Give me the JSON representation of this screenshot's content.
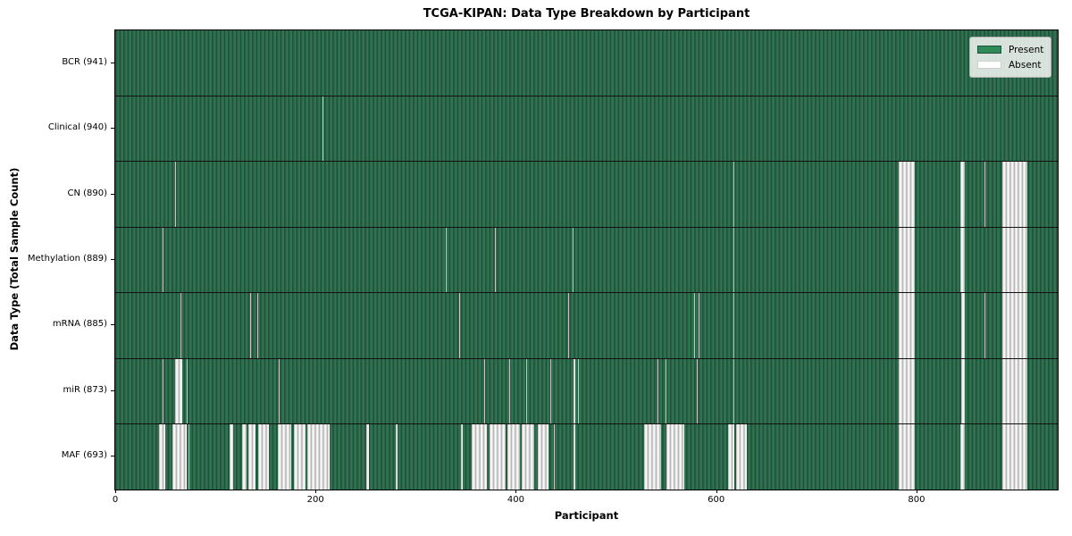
{
  "title": "TCGA-KIPAN: Data Type Breakdown by Participant",
  "axes": {
    "x_label": "Participant",
    "y_label": "Data Type (Total Sample Count)"
  },
  "legend": {
    "items": [
      {
        "label": "Present",
        "color": "#2e8b57"
      },
      {
        "label": "Absent",
        "color": "#ffffff"
      }
    ]
  },
  "chart_data": {
    "type": "heatmap",
    "title": "TCGA-KIPAN: Data Type Breakdown by Participant",
    "xlabel": "Participant",
    "ylabel": "Data Type (Total Sample Count)",
    "legend_position": "upper right",
    "x_ticks": [
      0,
      200,
      400,
      600,
      800
    ],
    "x_max": 941,
    "n_participants": 941,
    "colors": {
      "present": "#2e8b57",
      "absent": "#ffffff"
    },
    "value_encoding": {
      "present": 1,
      "absent": 0
    },
    "rows": [
      {
        "label": "BCR (941)",
        "data_type": "BCR",
        "present_count": 941,
        "absent_ranges": []
      },
      {
        "label": "Clinical (940)",
        "data_type": "Clinical",
        "present_count": 940,
        "absent_ranges": [
          [
            207,
            208
          ]
        ]
      },
      {
        "label": "CN (890)",
        "data_type": "CN",
        "present_count": 890,
        "absent_ranges": [
          [
            60,
            61
          ],
          [
            617,
            618
          ],
          [
            782,
            798
          ],
          [
            844,
            848
          ],
          [
            868,
            869
          ],
          [
            886,
            911
          ]
        ]
      },
      {
        "label": "Methylation (889)",
        "data_type": "Methylation",
        "present_count": 889,
        "absent_ranges": [
          [
            47,
            48
          ],
          [
            330,
            331
          ],
          [
            379,
            380
          ],
          [
            457,
            458
          ],
          [
            617,
            618
          ],
          [
            782,
            798
          ],
          [
            844,
            848
          ],
          [
            886,
            911
          ]
        ]
      },
      {
        "label": "mRNA (885)",
        "data_type": "mRNA",
        "present_count": 885,
        "absent_ranges": [
          [
            65,
            66
          ],
          [
            135,
            136
          ],
          [
            142,
            143
          ],
          [
            343,
            344
          ],
          [
            452,
            453
          ],
          [
            578,
            579
          ],
          [
            582,
            583
          ],
          [
            617,
            618
          ],
          [
            782,
            798
          ],
          [
            845,
            848
          ],
          [
            868,
            869
          ],
          [
            886,
            911
          ]
        ]
      },
      {
        "label": "miR (873)",
        "data_type": "miR",
        "present_count": 873,
        "absent_ranges": [
          [
            47,
            48
          ],
          [
            60,
            67
          ],
          [
            71,
            72
          ],
          [
            163,
            164
          ],
          [
            368,
            369
          ],
          [
            393,
            394
          ],
          [
            410,
            411
          ],
          [
            434,
            435
          ],
          [
            458,
            459
          ],
          [
            462,
            463
          ],
          [
            541,
            542
          ],
          [
            549,
            550
          ],
          [
            581,
            582
          ],
          [
            617,
            618
          ],
          [
            782,
            798
          ],
          [
            845,
            848
          ],
          [
            886,
            911
          ]
        ]
      },
      {
        "label": "MAF (693)",
        "data_type": "MAF",
        "present_count": 693,
        "absent_ranges": [
          [
            44,
            50
          ],
          [
            57,
            71
          ],
          [
            73,
            74
          ],
          [
            114,
            118
          ],
          [
            127,
            131
          ],
          [
            133,
            140
          ],
          [
            143,
            153
          ],
          [
            162,
            176
          ],
          [
            178,
            190
          ],
          [
            192,
            214
          ],
          [
            251,
            253
          ],
          [
            280,
            282
          ],
          [
            345,
            347
          ],
          [
            356,
            371
          ],
          [
            374,
            390
          ],
          [
            392,
            404
          ],
          [
            406,
            418
          ],
          [
            422,
            433
          ],
          [
            438,
            439
          ],
          [
            458,
            459
          ],
          [
            528,
            545
          ],
          [
            550,
            568
          ],
          [
            612,
            618
          ],
          [
            620,
            631
          ],
          [
            782,
            798
          ],
          [
            844,
            848
          ],
          [
            886,
            911
          ]
        ]
      }
    ]
  }
}
